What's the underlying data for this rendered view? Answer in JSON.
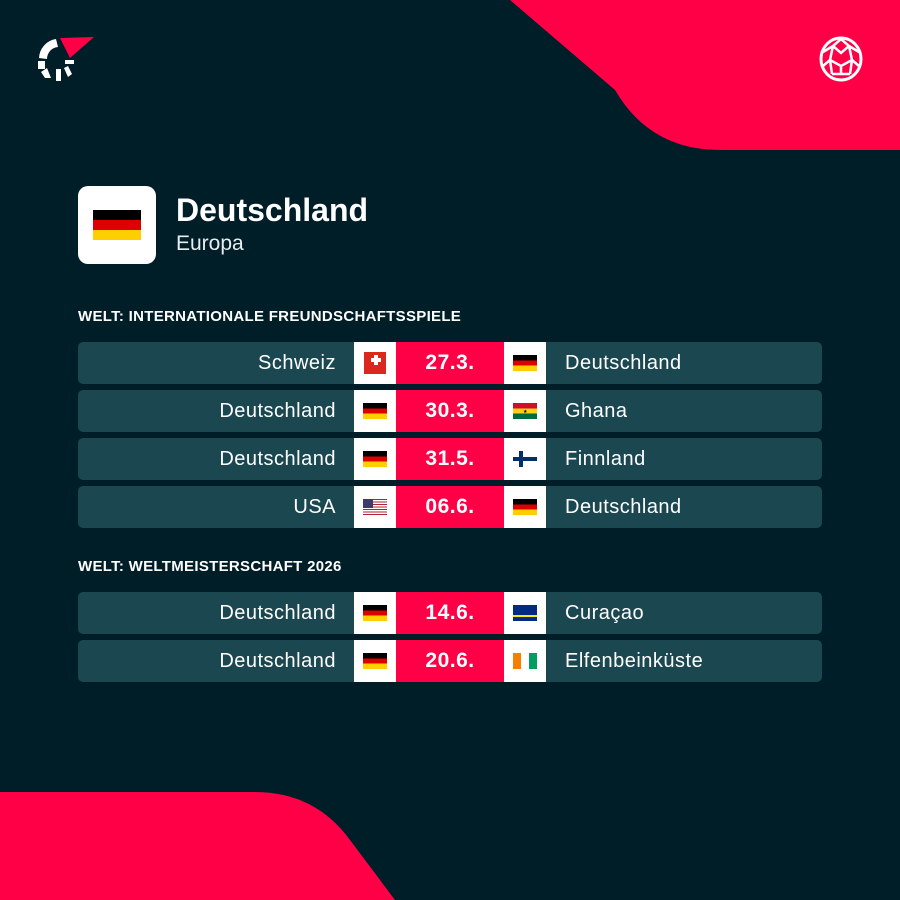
{
  "brand": {
    "accent": "#ff0046",
    "background": "#001e28",
    "row": "#1b4751"
  },
  "icons": {
    "logo": "flashscore-logo",
    "sport": "football-icon"
  },
  "team": {
    "name": "Deutschland",
    "region": "Europa",
    "flag": "de"
  },
  "sections": [
    {
      "title": "WELT: INTERNATIONALE FREUNDSCHAFTSSPIELE",
      "matches": [
        {
          "home": "Schweiz",
          "home_flag": "ch",
          "date": "27.3.",
          "away": "Deutschland",
          "away_flag": "de"
        },
        {
          "home": "Deutschland",
          "home_flag": "de",
          "date": "30.3.",
          "away": "Ghana",
          "away_flag": "gh"
        },
        {
          "home": "Deutschland",
          "home_flag": "de",
          "date": "31.5.",
          "away": "Finnland",
          "away_flag": "fi"
        },
        {
          "home": "USA",
          "home_flag": "us",
          "date": "06.6.",
          "away": "Deutschland",
          "away_flag": "de"
        }
      ]
    },
    {
      "title": "WELT: WELTMEISTERSCHAFT 2026",
      "matches": [
        {
          "home": "Deutschland",
          "home_flag": "de",
          "date": "14.6.",
          "away": "Curaçao",
          "away_flag": "cw"
        },
        {
          "home": "Deutschland",
          "home_flag": "de",
          "date": "20.6.",
          "away": "Elfenbeinküste",
          "away_flag": "ci"
        }
      ]
    }
  ]
}
